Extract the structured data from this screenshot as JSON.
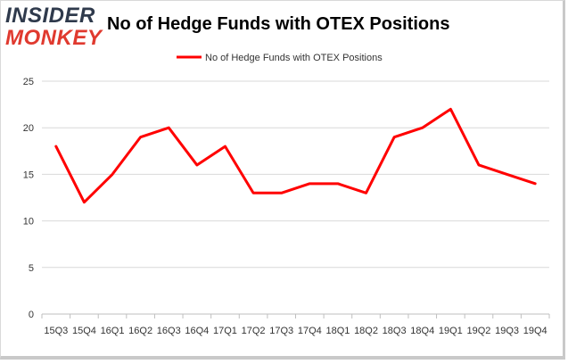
{
  "logo": {
    "line1": "INSIDER",
    "line2": "MONKEY"
  },
  "chart_data": {
    "type": "line",
    "title": "No of Hedge Funds with OTEX Positions",
    "categories": [
      "15Q3",
      "15Q4",
      "16Q1",
      "16Q2",
      "16Q3",
      "16Q4",
      "17Q1",
      "17Q2",
      "17Q3",
      "17Q4",
      "18Q1",
      "18Q2",
      "18Q3",
      "18Q4",
      "19Q1",
      "19Q2",
      "19Q3",
      "19Q4"
    ],
    "series": [
      {
        "name": "No of Hedge Funds with OTEX Positions",
        "values": [
          18,
          12,
          15,
          19,
          20,
          16,
          18,
          13,
          13,
          14,
          14,
          13,
          19,
          20,
          22,
          16,
          15,
          14
        ]
      }
    ],
    "yticks": [
      0,
      5,
      10,
      15,
      20,
      25
    ],
    "ylim": [
      0,
      25
    ],
    "legend_position": "top-center",
    "grid": "horizontal",
    "colors": {
      "series": "#ff0000",
      "grid": "#d9d9d9"
    }
  }
}
